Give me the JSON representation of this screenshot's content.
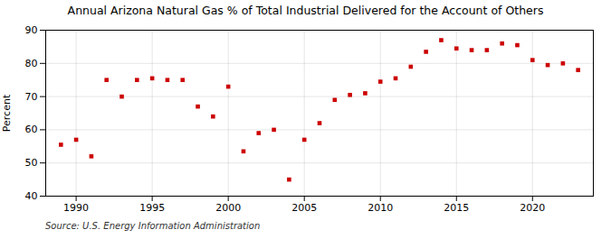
{
  "chart_data": {
    "type": "scatter",
    "title": "Annual Arizona Natural Gas % of Total Industrial Delivered for the Account of Others",
    "ylabel": "Percent",
    "source": "Source: U.S. Energy Information Administration",
    "x": [
      1989,
      1990,
      1991,
      1992,
      1993,
      1994,
      1995,
      1996,
      1997,
      1998,
      1999,
      2000,
      2001,
      2002,
      2003,
      2004,
      2005,
      2006,
      2007,
      2008,
      2009,
      2010,
      2011,
      2012,
      2013,
      2014,
      2015,
      2016,
      2017,
      2018,
      2019,
      2020,
      2021,
      2022,
      2023
    ],
    "values": [
      55.5,
      57.0,
      52.0,
      75.0,
      70.0,
      75.0,
      75.5,
      75.0,
      75.0,
      67.0,
      64.0,
      73.0,
      53.5,
      59.0,
      60.0,
      45.0,
      57.0,
      62.0,
      69.0,
      70.5,
      71.0,
      74.5,
      75.5,
      79.0,
      83.5,
      87.0,
      84.5,
      84.0,
      84.0,
      86.0,
      85.5,
      81.0,
      79.5,
      80.0,
      78.0
    ],
    "color": "#cc0000",
    "marker": "square",
    "xlim": [
      1988.0,
      2024.0
    ],
    "xticks": [
      1990,
      1995,
      2000,
      2005,
      2010,
      2015,
      2020
    ],
    "ylim": [
      40,
      90
    ],
    "yticks": [
      40,
      50,
      60,
      70,
      80,
      90
    ],
    "grid": true
  }
}
